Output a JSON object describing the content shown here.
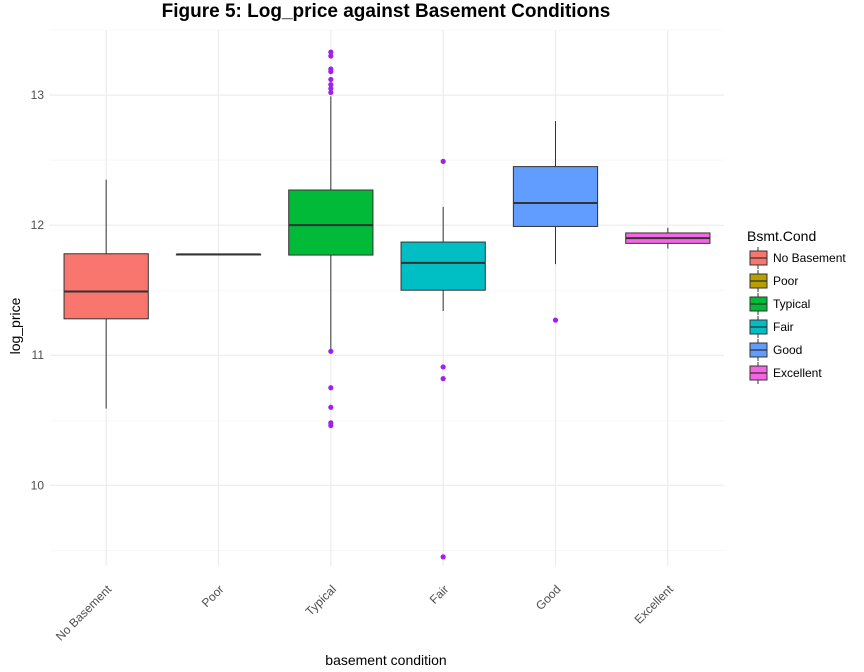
{
  "chart_data": {
    "type": "boxplot",
    "title": "Figure 5: Log_price against Basement Conditions",
    "xlabel": "basement condition",
    "ylabel": "log_price",
    "ylim": [
      9.38,
      13.5
    ],
    "yticks": [
      10,
      11,
      12,
      13
    ],
    "grid": true,
    "legend": {
      "title": "Bsmt.Cond",
      "placement": "right"
    },
    "outlier_color": "#a020f0",
    "categories": [
      "No Basement",
      "Poor",
      "Typical",
      "Fair",
      "Good",
      "Excellent"
    ],
    "boxes": [
      {
        "label": "No Basement",
        "color": "#f8766d",
        "whisker_low": 10.59,
        "q1": 11.28,
        "median": 11.49,
        "q3": 11.78,
        "whisker_high": 12.35,
        "outliers": []
      },
      {
        "label": "Poor",
        "color": "#b79f00",
        "whisker_low": 11.775,
        "q1": 11.775,
        "median": 11.775,
        "q3": 11.775,
        "whisker_high": 11.775,
        "outliers": []
      },
      {
        "label": "Typical",
        "color": "#00ba38",
        "whisker_low": 11.03,
        "q1": 11.77,
        "median": 12.0,
        "q3": 12.27,
        "whisker_high": 12.99,
        "outliers": [
          13.33,
          13.3,
          13.2,
          13.18,
          13.12,
          13.08,
          13.05,
          13.02,
          11.03,
          10.75,
          10.6,
          10.48,
          10.46
        ]
      },
      {
        "label": "Fair",
        "color": "#00bfc4",
        "whisker_low": 11.34,
        "q1": 11.5,
        "median": 11.71,
        "q3": 11.87,
        "whisker_high": 12.14,
        "outliers": [
          12.49,
          10.91,
          10.82,
          9.45
        ]
      },
      {
        "label": "Good",
        "color": "#619cff",
        "whisker_low": 11.7,
        "q1": 11.99,
        "median": 12.17,
        "q3": 12.45,
        "whisker_high": 12.8,
        "outliers": [
          11.27
        ]
      },
      {
        "label": "Excellent",
        "color": "#f564e3",
        "whisker_low": 11.82,
        "q1": 11.86,
        "median": 11.9,
        "q3": 11.94,
        "whisker_high": 11.98,
        "outliers": []
      }
    ]
  }
}
